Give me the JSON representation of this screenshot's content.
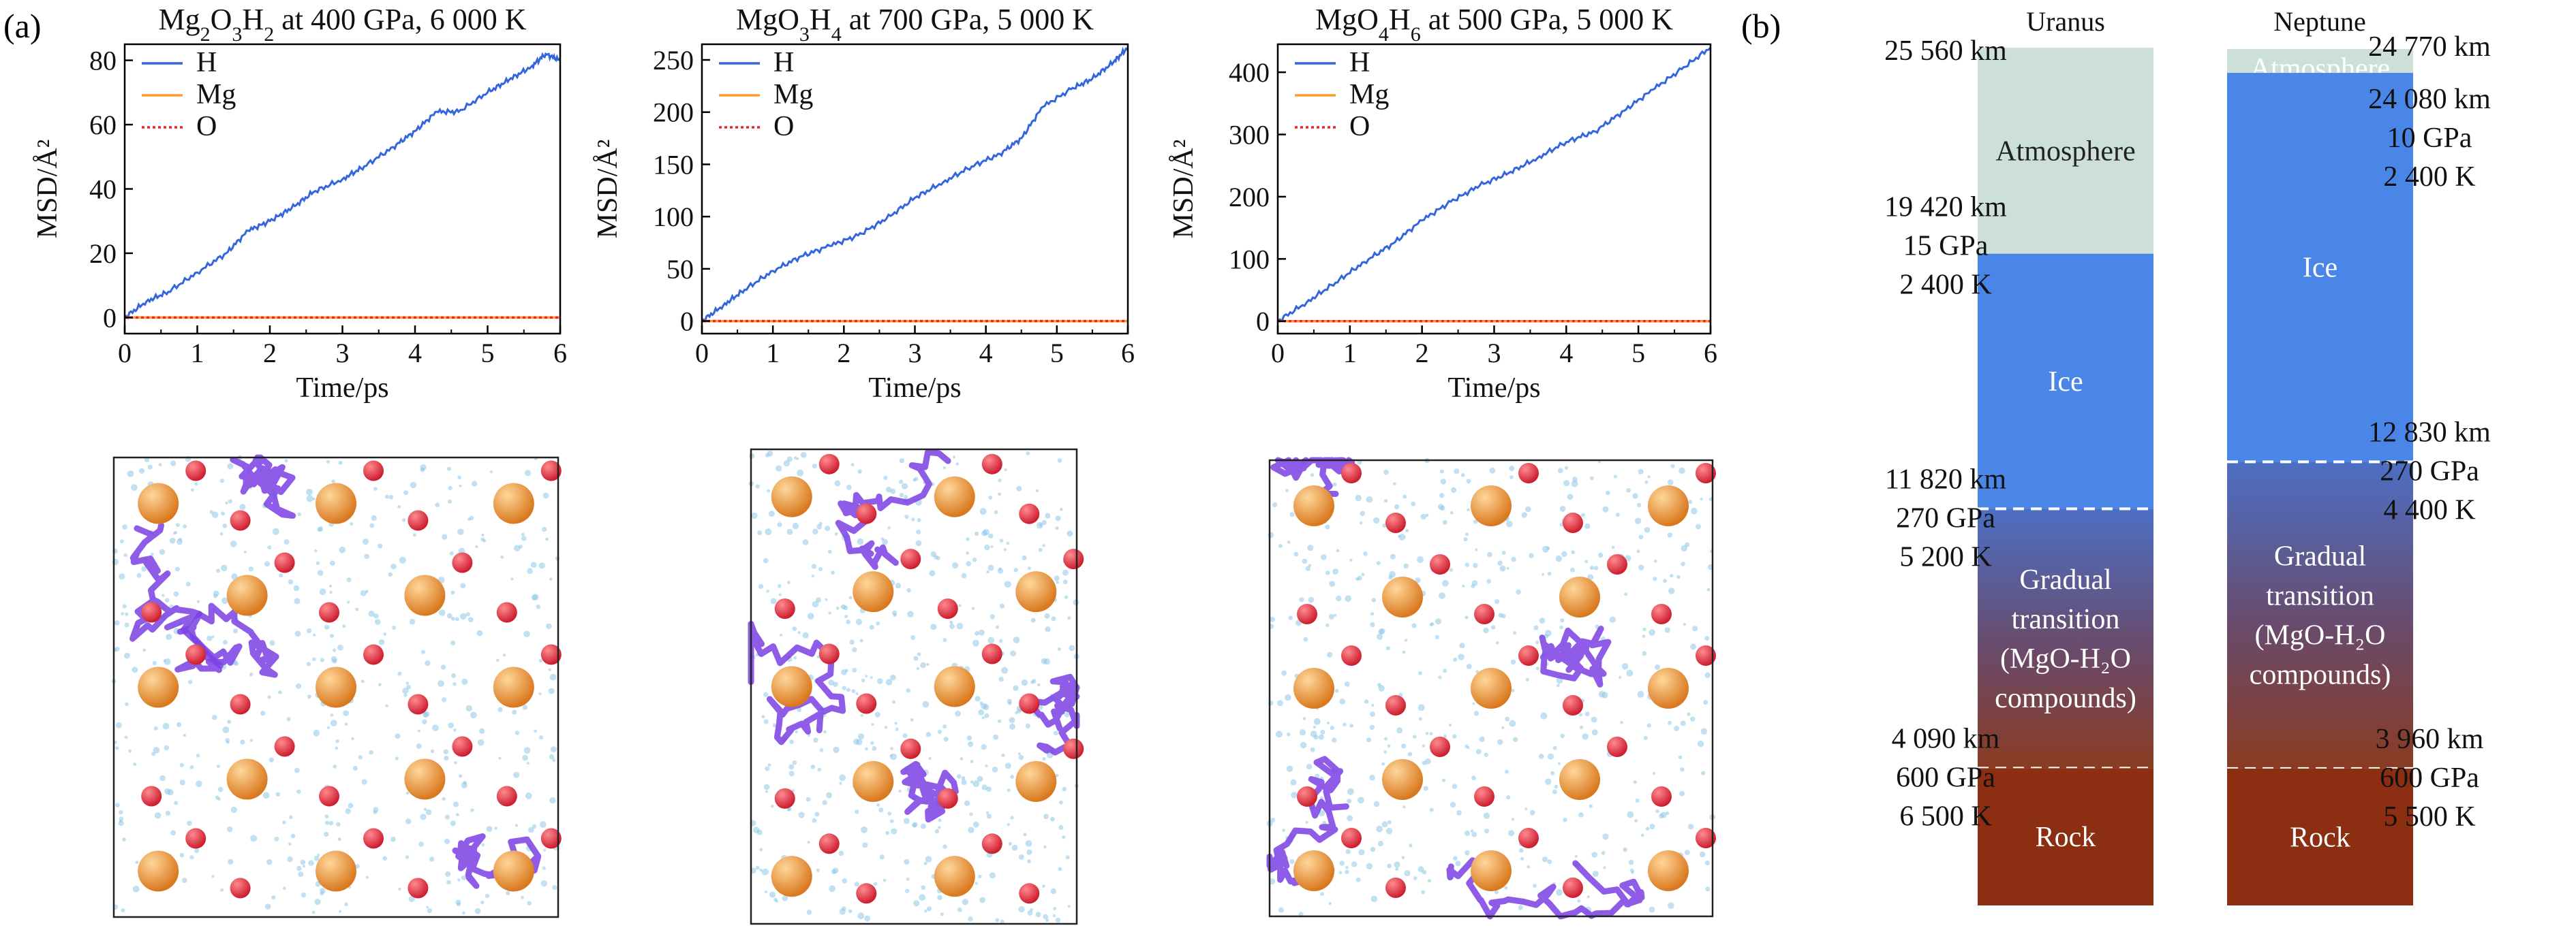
{
  "panel_labels": {
    "a": "(a)",
    "b": "(b)"
  },
  "colors": {
    "H": "#3366dd",
    "Mg": "#ff9a2e",
    "O": "#ee2222",
    "atmosphere": "#cde0d8",
    "ice": "#4a86e8",
    "rock_top": "#8a3c22",
    "rock_bottom": "#8b2e12",
    "atom_mg": "#d9781e",
    "atom_o": "#cc1d2e",
    "trace": "#7b3fe4",
    "cloud": "#8ec6e6"
  },
  "chart_data": [
    {
      "type": "line",
      "title": {
        "formula": [
          [
            "Mg",
            ""
          ],
          [
            "2",
            "sub"
          ],
          [
            "O",
            ""
          ],
          [
            "3",
            "sub"
          ],
          [
            "H",
            ""
          ],
          [
            "2",
            "sub"
          ]
        ],
        "rest": " at 400 GPa, 6 000 K"
      },
      "xlabel": "Time/ps",
      "ylabel": "MSD/Å²",
      "xlim": [
        0,
        6
      ],
      "ylim": [
        -5,
        85
      ],
      "xticks": [
        0,
        1,
        2,
        3,
        4,
        5,
        6
      ],
      "yticks": [
        0,
        20,
        40,
        60,
        80
      ],
      "legend": [
        "H",
        "Mg",
        "O"
      ],
      "series": [
        {
          "name": "H",
          "x": [
            0,
            0.3,
            0.6,
            1.0,
            1.4,
            1.7,
            2.0,
            2.3,
            2.6,
            3.0,
            3.3,
            3.7,
            4.0,
            4.3,
            4.6,
            5.0,
            5.3,
            5.6,
            5.8,
            6.0
          ],
          "y": [
            0,
            5,
            8,
            14,
            20,
            27,
            30,
            34,
            39,
            43,
            47,
            53,
            58,
            64,
            64,
            70,
            74,
            78,
            82,
            80
          ]
        },
        {
          "name": "Mg",
          "x": [
            0,
            6
          ],
          "y": [
            0,
            0
          ]
        },
        {
          "name": "O",
          "x": [
            0,
            6
          ],
          "y": [
            0,
            0
          ]
        }
      ]
    },
    {
      "type": "line",
      "title": {
        "formula": [
          [
            "MgO",
            ""
          ],
          [
            "3",
            "sub"
          ],
          [
            "H",
            ""
          ],
          [
            "4",
            "sub"
          ]
        ],
        "rest": " at 700 GPa, 5 000 K"
      },
      "xlabel": "Time/ps",
      "ylabel": "MSD/Å²",
      "xlim": [
        0,
        6
      ],
      "ylim": [
        -12,
        265
      ],
      "xticks": [
        0,
        1,
        2,
        3,
        4,
        5,
        6
      ],
      "yticks": [
        0,
        50,
        100,
        150,
        200,
        250
      ],
      "legend": [
        "H",
        "Mg",
        "O"
      ],
      "series": [
        {
          "name": "H",
          "x": [
            0,
            0.3,
            0.6,
            1.0,
            1.4,
            1.8,
            2.2,
            2.6,
            3.0,
            3.4,
            3.8,
            4.2,
            4.5,
            4.8,
            5.2,
            5.5,
            5.8,
            6.0
          ],
          "y": [
            0,
            15,
            30,
            48,
            62,
            72,
            82,
            98,
            118,
            133,
            148,
            160,
            175,
            205,
            222,
            232,
            248,
            262
          ]
        },
        {
          "name": "Mg",
          "x": [
            0,
            6
          ],
          "y": [
            0,
            0
          ]
        },
        {
          "name": "O",
          "x": [
            0,
            6
          ],
          "y": [
            0,
            0
          ]
        }
      ]
    },
    {
      "type": "line",
      "title": {
        "formula": [
          [
            "MgO",
            ""
          ],
          [
            "4",
            "sub"
          ],
          [
            "H",
            ""
          ],
          [
            "6",
            "sub"
          ]
        ],
        "rest": " at 500 GPa, 5 000 K"
      },
      "xlabel": "Time/ps",
      "ylabel": "MSD/Å²",
      "xlim": [
        0,
        6
      ],
      "ylim": [
        -20,
        445
      ],
      "xticks": [
        0,
        1,
        2,
        3,
        4,
        5,
        6
      ],
      "yticks": [
        0,
        100,
        200,
        300,
        400
      ],
      "legend": [
        "H",
        "Mg",
        "O"
      ],
      "series": [
        {
          "name": "H",
          "x": [
            0,
            0.4,
            0.8,
            1.2,
            1.6,
            2.0,
            2.4,
            2.8,
            3.2,
            3.6,
            4.0,
            4.4,
            4.8,
            5.2,
            5.6,
            6.0
          ],
          "y": [
            0,
            30,
            62,
            95,
            125,
            162,
            192,
            218,
            238,
            262,
            288,
            305,
            338,
            372,
            405,
            440
          ]
        },
        {
          "name": "Mg",
          "x": [
            0,
            6
          ],
          "y": [
            0,
            0
          ]
        },
        {
          "name": "O",
          "x": [
            0,
            6
          ],
          "y": [
            0,
            0
          ]
        }
      ]
    },
    {
      "type": "bar",
      "series": [
        {
          "name": "Uranus",
          "top_km": 25560,
          "layers": [
            {
              "name": "Atmosphere",
              "lines": [
                [
                  "Atmosphere",
                  ""
                ]
              ],
              "from_km": 25560,
              "to_km": 19420
            },
            {
              "name": "Ice",
              "lines": [
                [
                  "Ice",
                  ""
                ]
              ],
              "from_km": 19420,
              "to_km": 11820
            },
            {
              "name": "Gradual transition",
              "lines": [
                [
                  "Gradual",
                  ""
                ],
                [
                  "transition",
                  ""
                ],
                [
                  "(MgO-H₂O",
                  ""
                ],
                [
                  "compounds)",
                  ""
                ]
              ],
              "from_km": 11820,
              "to_km": 4090
            },
            {
              "name": "Rock",
              "lines": [
                [
                  "Rock",
                  ""
                ]
              ],
              "from_km": 4090,
              "to_km": 0
            }
          ],
          "boundaries": [
            {
              "lines": [
                "25 560 km"
              ]
            },
            {
              "lines": [
                "19 420 km",
                "15 GPa",
                "2 400 K"
              ]
            },
            {
              "lines": [
                "11 820 km",
                "270 GPa",
                "5 200 K"
              ]
            },
            {
              "lines": [
                "4 090 km",
                "600 GPa",
                "6 500 K"
              ]
            }
          ]
        },
        {
          "name": "Neptune",
          "top_km": 24770,
          "layers": [
            {
              "name": "Atmosphere",
              "lines": [
                [
                  "Atmosphere",
                  ""
                ]
              ],
              "from_km": 24770,
              "to_km": 24080
            },
            {
              "name": "Ice",
              "lines": [
                [
                  "Ice",
                  ""
                ]
              ],
              "from_km": 24080,
              "to_km": 12830
            },
            {
              "name": "Gradual transition",
              "lines": [
                [
                  "Gradual",
                  ""
                ],
                [
                  "transition",
                  ""
                ],
                [
                  "(MgO-H₂O",
                  ""
                ],
                [
                  "compounds)",
                  ""
                ]
              ],
              "from_km": 12830,
              "to_km": 3960
            },
            {
              "name": "Rock",
              "lines": [
                [
                  "Rock",
                  ""
                ]
              ],
              "from_km": 3960,
              "to_km": 0
            }
          ],
          "boundaries": [
            {
              "lines": [
                "24 770 km"
              ]
            },
            {
              "lines": [
                "24 080 km",
                "10 GPa",
                "2 400 K"
              ]
            },
            {
              "lines": [
                "12 830 km",
                "270 GPa",
                "4 400 K"
              ]
            },
            {
              "lines": [
                "3 960 km",
                "600 GPa",
                "5 500 K"
              ]
            }
          ]
        }
      ]
    }
  ]
}
